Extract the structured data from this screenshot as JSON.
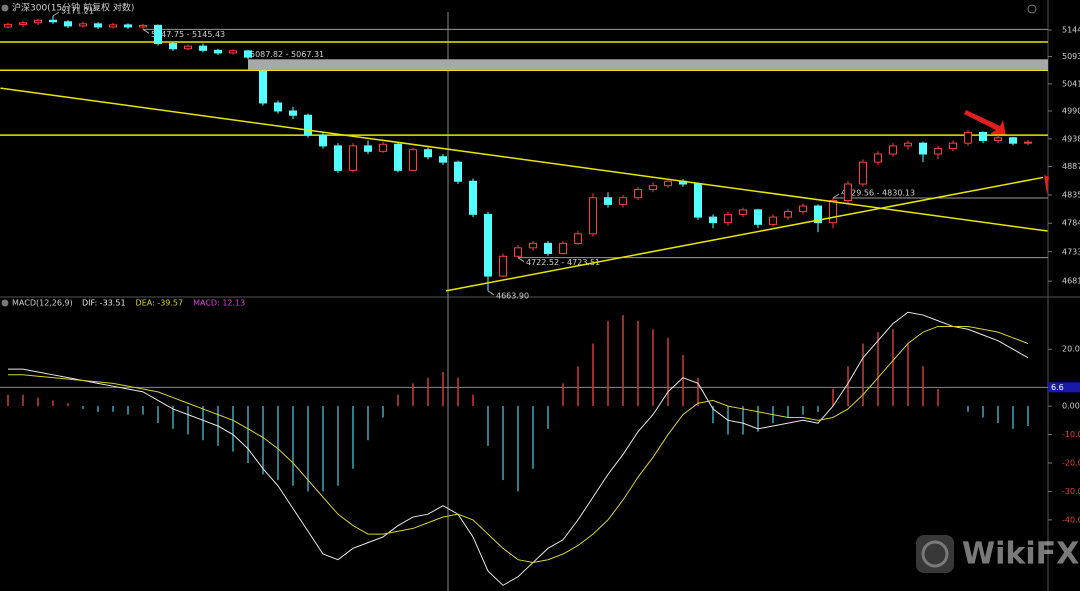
{
  "chart_data": [
    {
      "type": "candlestick",
      "title": "沪深300(15分钟 前复权 对数)",
      "log": true,
      "ylim": [
        4655,
        5179
      ],
      "yticks": [
        5144,
        5093,
        5041,
        4990,
        4938,
        4887,
        4835,
        4784,
        4733,
        4681
      ],
      "up_color": "#ff3c3c",
      "down_color": "#54ffff",
      "open": [
        5150,
        5155,
        5158,
        5163,
        5160,
        5152,
        5156,
        5150,
        5154,
        5150,
        5153,
        5118,
        5108,
        5113,
        5105,
        5100,
        5104,
        5065,
        5005,
        4990,
        4982,
        4945,
        4925,
        4880,
        4925,
        4915,
        4928,
        4880,
        4918,
        4905,
        4895,
        4860,
        4800,
        4690,
        4725,
        4740,
        4748,
        4730,
        4748,
        4765,
        4830,
        4818,
        4830,
        4845,
        4852,
        4860,
        4855,
        4795,
        4785,
        4800,
        4808,
        4782,
        4795,
        4805,
        4815,
        4785,
        4825,
        4855,
        4895,
        4910,
        4925,
        4930,
        4910,
        4920,
        4930,
        4950,
        4935,
        4940,
        4930
      ],
      "high": [
        5158,
        5162,
        5166,
        5171.21,
        5163,
        5160,
        5159,
        5158,
        5157,
        5156,
        5155,
        5122,
        5116,
        5118,
        5108,
        5107,
        5106,
        5067.31,
        5010,
        4998,
        4985,
        4950,
        4930,
        4930,
        4935,
        4932,
        4932,
        4922,
        4922,
        4910,
        4898,
        4865,
        4805,
        4730,
        4745,
        4752,
        4752,
        4752,
        4770,
        4838,
        4840,
        4835,
        4850,
        4858,
        4865,
        4864,
        4858,
        4800,
        4805,
        4812,
        4810,
        4800,
        4810,
        4820,
        4818,
        4829.56,
        4860,
        4900,
        4915,
        4930,
        4935,
        4933,
        4925,
        4935,
        4955,
        4952,
        4945,
        4942,
        4936
      ],
      "low": [
        5147,
        5150,
        5154,
        5156,
        5148,
        5149,
        5146,
        5147,
        5146,
        5145.43,
        5114,
        5104,
        5105,
        5101,
        5096,
        5097,
        5087.82,
        5000,
        4985,
        4975,
        4940,
        4920,
        4875,
        4876,
        4910,
        4912,
        4876,
        4878,
        4900,
        4890,
        4855,
        4795,
        4663.9,
        4688,
        4722.52,
        4735,
        4726,
        4728,
        4745,
        4760,
        4812,
        4812,
        4826,
        4840,
        4848,
        4850,
        4790,
        4775,
        4780,
        4795,
        4775,
        4778,
        4790,
        4800,
        4768,
        4775,
        4820,
        4850,
        4890,
        4905,
        4918,
        4895,
        4900,
        4915,
        4925,
        4930,
        4930,
        4926,
        4926
      ],
      "close": [
        5155,
        5158,
        5163,
        5160,
        5152,
        5156,
        5150,
        5154,
        5150,
        5153,
        5118,
        5108,
        5113,
        5105,
        5100,
        5104,
        5092,
        5005,
        4990,
        4982,
        4945,
        4925,
        4880,
        4925,
        4915,
        4928,
        4880,
        4918,
        4905,
        4895,
        4860,
        4800,
        4690,
        4725,
        4740,
        4748,
        4730,
        4748,
        4765,
        4830,
        4818,
        4830,
        4845,
        4852,
        4860,
        4855,
        4795,
        4785,
        4800,
        4808,
        4782,
        4795,
        4805,
        4815,
        4785,
        4825,
        4855,
        4895,
        4910,
        4925,
        4930,
        4910,
        4920,
        4930,
        4950,
        4935,
        4940,
        4930,
        4932
      ],
      "annotations": [
        {
          "label": "5171.21",
          "value": [
            5171.21
          ],
          "style": "text"
        },
        {
          "label": "5147.75 - 5145.43",
          "value": [
            5145.43,
            5147.75
          ],
          "style": "line"
        },
        {
          "label": "5087.82 - 5067.31",
          "value": [
            5087.82,
            5067.31
          ],
          "style": "zone"
        },
        {
          "label": "4722.52 - 4723.51",
          "value": [
            4722.52,
            4723.51
          ],
          "style": "line"
        },
        {
          "label": "4829.56 - 4830.13",
          "value": [
            4829.56,
            4830.13
          ],
          "style": "line"
        },
        {
          "label": "4663.90",
          "value": [
            4663.9
          ],
          "style": "text"
        }
      ],
      "hlines": [
        5121,
        5067,
        4945
      ],
      "line_color": "#e6e600",
      "trendlines": [
        {
          "x": [
            -0.5,
            69.3
          ],
          "y": [
            5033,
            4770
          ]
        },
        {
          "x": [
            29.2,
            69
          ],
          "y": [
            4664,
            4867
          ]
        }
      ]
    },
    {
      "type": "macd",
      "title": "MACD(12,26,9)",
      "ylim": [
        -65,
        38
      ],
      "yticks": [
        {
          "value": 20,
          "label": "20.00"
        },
        {
          "value": 0,
          "label": "0.00"
        },
        {
          "value": -10,
          "label": "-10.00"
        },
        {
          "value": -20,
          "label": "-20.00"
        },
        {
          "value": -30,
          "label": "-30.00"
        },
        {
          "value": -40,
          "label": "-40.00"
        }
      ],
      "marker": 6.6,
      "series": [
        {
          "name": "DIF: -33.51",
          "color": "#e8e8e8",
          "kind": "line",
          "values": [
            13,
            13,
            12,
            11,
            10,
            9,
            8,
            7,
            6,
            5,
            2,
            -1,
            -3,
            -5,
            -7,
            -10,
            -15,
            -22,
            -28,
            -36,
            -44,
            -52,
            -54,
            -50,
            -48,
            -46,
            -42,
            -39,
            -38,
            -35,
            -38,
            -46,
            -58,
            -63,
            -60,
            -55,
            -50,
            -47,
            -40,
            -32,
            -24,
            -17,
            -9,
            -3,
            5,
            10,
            8,
            -1,
            -5,
            -6,
            -8,
            -7,
            -6,
            -5,
            -6,
            0,
            8,
            17,
            23,
            29,
            33,
            32,
            30,
            28,
            27,
            25,
            23,
            20,
            17
          ]
        },
        {
          "name": "DEA: -39.57",
          "color": "#d8d230",
          "kind": "line",
          "values": [
            11,
            11,
            10.5,
            10,
            9.5,
            9,
            8.5,
            8,
            7,
            6,
            5,
            3,
            1,
            -1,
            -3,
            -5,
            -8,
            -11,
            -15,
            -20,
            -26,
            -32,
            -38,
            -42,
            -45,
            -45,
            -44,
            -43,
            -41,
            -39,
            -38,
            -40,
            -45,
            -50,
            -54,
            -55,
            -54,
            -52,
            -49,
            -45,
            -40,
            -33,
            -25,
            -18,
            -10,
            -3,
            1,
            2,
            0,
            -1,
            -2,
            -3,
            -4,
            -4,
            -5,
            -4,
            -1,
            4,
            10,
            16,
            22,
            26,
            28,
            28,
            28,
            27,
            26,
            24,
            22
          ]
        },
        {
          "name": "MACD: 12.13",
          "color": "#e040e0",
          "kind": "bar",
          "up_color": "#d03a3a",
          "down_color": "#3aa9b8",
          "values": [
            4,
            4,
            3,
            2,
            1,
            -1,
            -2,
            -2,
            -3,
            -3,
            -6,
            -8,
            -10,
            -12,
            -14,
            -16,
            -20,
            -24,
            -26,
            -28,
            -30,
            -30,
            -28,
            -22,
            -12,
            -4,
            4,
            8,
            10,
            12,
            10,
            4,
            -14,
            -26,
            -30,
            -22,
            -8,
            8,
            14,
            22,
            30,
            32,
            30,
            27,
            24,
            18,
            10,
            -6,
            -10,
            -10,
            -9,
            -6,
            -4,
            -3,
            -2,
            6,
            14,
            22,
            26,
            27,
            22,
            14,
            6,
            0,
            -2,
            -4,
            -6,
            -8,
            -7
          ]
        }
      ]
    }
  ],
  "watermark": "WikiFX"
}
